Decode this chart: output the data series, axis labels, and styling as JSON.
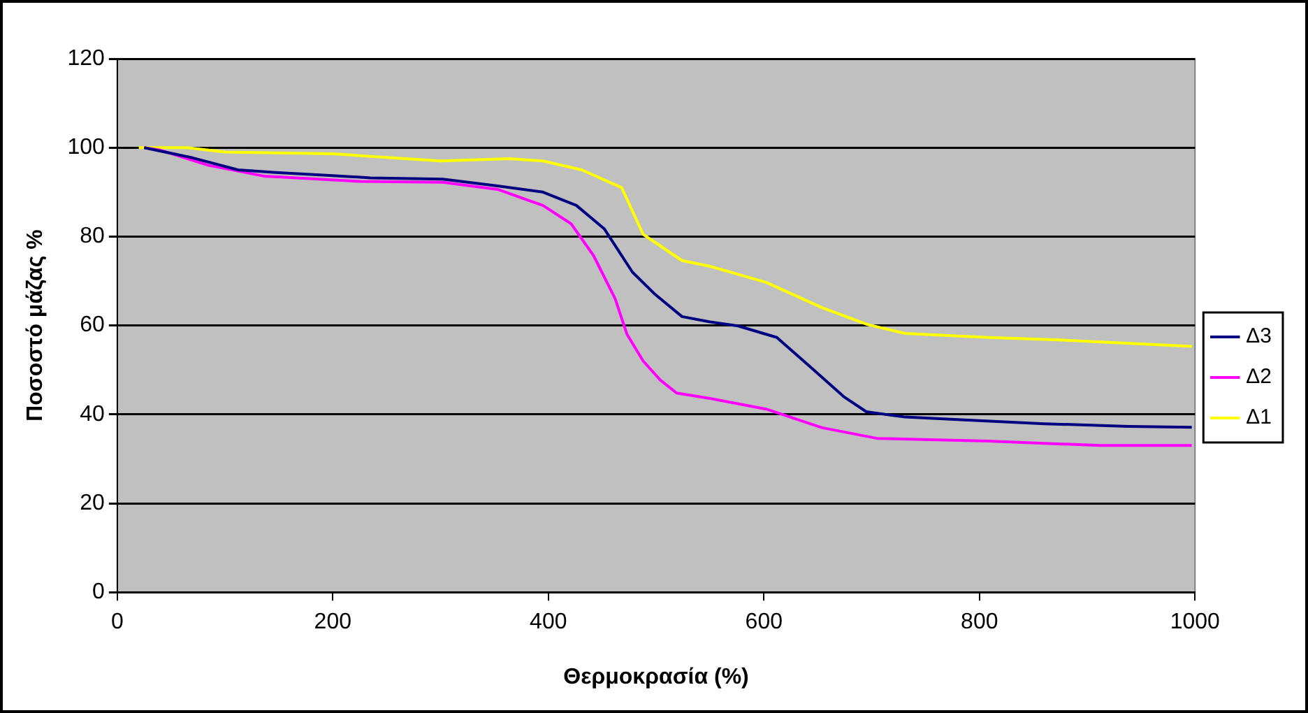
{
  "chart_data": {
    "type": "line",
    "xlabel": "Θερμοκρασία (%)",
    "ylabel": "Ποσοστό μάζας %",
    "xlim": [
      0,
      1000
    ],
    "ylim": [
      0,
      120
    ],
    "xticks": [
      0,
      200,
      400,
      600,
      800,
      1000
    ],
    "yticks": [
      0,
      20,
      40,
      60,
      80,
      100,
      120
    ],
    "grid": "y",
    "legend": "right",
    "marker": "none",
    "line_style": "solid",
    "series": [
      {
        "name": "Δ3",
        "color": "#000080",
        "x": [
          25,
          70,
          112,
          147,
          194,
          235,
          302,
          353,
          395,
          426,
          452,
          478,
          499,
          524,
          550,
          576,
          612,
          643,
          674,
          695,
          731,
          783,
          860,
          938,
          997
        ],
        "values": [
          100,
          97.7,
          95,
          94.4,
          93.8,
          93.2,
          92.9,
          91.4,
          90,
          87,
          81.7,
          72,
          67,
          62,
          60.8,
          59.9,
          57.3,
          50.7,
          44,
          40.6,
          39.4,
          38.8,
          37.9,
          37.3,
          37.1
        ]
      },
      {
        "name": "Δ2",
        "color": "#ff00ff",
        "x": [
          25,
          39,
          85,
          136,
          225,
          302,
          353,
          395,
          421,
          442,
          462,
          473,
          488,
          504,
          519,
          550,
          602,
          654,
          705,
          808,
          912,
          997
        ],
        "values": [
          100,
          99.5,
          96,
          93.6,
          92.4,
          92.2,
          90.6,
          87,
          82.9,
          75.7,
          66,
          58,
          52,
          47.7,
          44.8,
          43.6,
          41.2,
          37,
          34.6,
          34,
          33,
          33
        ]
      },
      {
        "name": "Δ1",
        "color": "#ffff00",
        "x": [
          20,
          65,
          100,
          200,
          300,
          364,
          395,
          431,
          468,
          488,
          524,
          550,
          602,
          654,
          695,
          731,
          808,
          869,
          920,
          997
        ],
        "values": [
          100,
          100,
          99,
          98.6,
          97,
          97.5,
          97,
          95,
          91,
          80.5,
          74.6,
          73.3,
          69.7,
          64,
          60.3,
          58.2,
          57.3,
          56.8,
          56.2,
          55.3
        ]
      }
    ]
  }
}
